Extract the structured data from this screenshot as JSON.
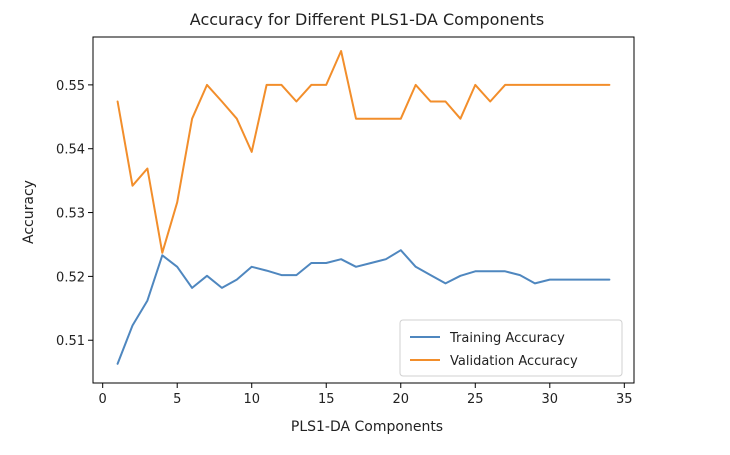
{
  "chart_data": {
    "type": "line",
    "title": "Accuracy for Different PLS1-DA Components",
    "xlabel": "PLS1-DA Components",
    "ylabel": "Accuracy",
    "xlim": [
      -0.65,
      35.65
    ],
    "ylim": [
      0.5033,
      0.5575
    ],
    "xticks": [
      0,
      5,
      10,
      15,
      20,
      25,
      30,
      35
    ],
    "yticks": [
      0.51,
      0.52,
      0.53,
      0.54,
      0.55
    ],
    "ytick_labels": [
      "0.51",
      "0.52",
      "0.53",
      "0.54",
      "0.55"
    ],
    "grid": false,
    "legend_position": "lower-right",
    "x": [
      1,
      2,
      3,
      4,
      5,
      6,
      7,
      8,
      9,
      10,
      11,
      12,
      13,
      14,
      15,
      16,
      17,
      18,
      19,
      20,
      21,
      22,
      23,
      24,
      25,
      26,
      27,
      28,
      29,
      30,
      31,
      32,
      33,
      34
    ],
    "series": [
      {
        "name": "Training Accuracy",
        "color": "#4f87bf",
        "values": [
          0.5063,
          0.5123,
          0.5162,
          0.5233,
          0.5215,
          0.5182,
          0.5201,
          0.5182,
          0.5195,
          0.5215,
          0.5209,
          0.5202,
          0.5202,
          0.5221,
          0.5221,
          0.5227,
          0.5215,
          0.5221,
          0.5227,
          0.5241,
          0.5215,
          0.5202,
          0.5189,
          0.5201,
          0.5208,
          0.5208,
          0.5208,
          0.5202,
          0.5189,
          0.5195,
          0.5195,
          0.5195,
          0.5195,
          0.5195
        ]
      },
      {
        "name": "Validation Accuracy",
        "color": "#f28e2b",
        "values": [
          0.5474,
          0.5342,
          0.5369,
          0.5237,
          0.5316,
          0.5447,
          0.55,
          0.5474,
          0.5447,
          0.5395,
          0.55,
          0.55,
          0.5474,
          0.55,
          0.55,
          0.5553,
          0.5447,
          0.5447,
          0.5447,
          0.5447,
          0.55,
          0.5474,
          0.5474,
          0.5447,
          0.55,
          0.5474,
          0.55,
          0.55,
          0.55,
          0.55,
          0.55,
          0.55,
          0.55,
          0.55
        ]
      }
    ]
  }
}
